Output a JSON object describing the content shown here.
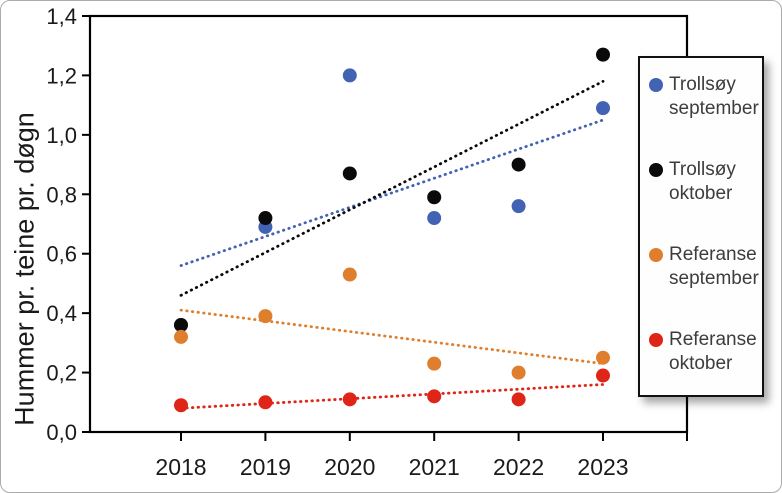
{
  "figure": {
    "background": "#ffffff",
    "frame_border_color": "#ababab",
    "axis_color": "#000000",
    "axis_text_color": "#1a1a1a",
    "legend_text_color": "#3d3d3d"
  },
  "chart_data": {
    "type": "scatter",
    "title": "",
    "xlabel": "",
    "ylabel": "Hummer pr. teine pr. døgn",
    "categories": [
      "2018",
      "2019",
      "2020",
      "2021",
      "2022",
      "2023"
    ],
    "ylim": [
      0,
      1.4
    ],
    "y_tick_step": 0.2,
    "y_tick_labels": [
      "0,0",
      "0,2",
      "0,4",
      "0,6",
      "0,8",
      "1,0",
      "1,2",
      "1,4"
    ],
    "grid": false,
    "legend_position": "right",
    "marker": "circle",
    "trendline_style": "dotted",
    "series": [
      {
        "name": "Trollsøy september",
        "color": "#4263b3",
        "values": [
          0.36,
          0.69,
          1.2,
          0.72,
          0.76,
          1.09
        ],
        "trendline": {
          "start_value": 0.56,
          "end_value": 1.05
        }
      },
      {
        "name": "Trollsøy oktober",
        "color": "#0a0a0a",
        "values": [
          0.36,
          0.72,
          0.87,
          0.79,
          0.9,
          1.27
        ],
        "trendline": {
          "start_value": 0.46,
          "end_value": 1.18
        }
      },
      {
        "name": "Referanse september",
        "color": "#df7e2c",
        "values": [
          0.32,
          0.39,
          0.53,
          0.23,
          0.2,
          0.25
        ],
        "trendline": {
          "start_value": 0.41,
          "end_value": 0.23
        }
      },
      {
        "name": "Referanse oktober",
        "color": "#df2518",
        "values": [
          0.09,
          0.1,
          0.11,
          0.12,
          0.11,
          0.19
        ],
        "trendline": {
          "start_value": 0.08,
          "end_value": 0.16
        }
      }
    ]
  }
}
